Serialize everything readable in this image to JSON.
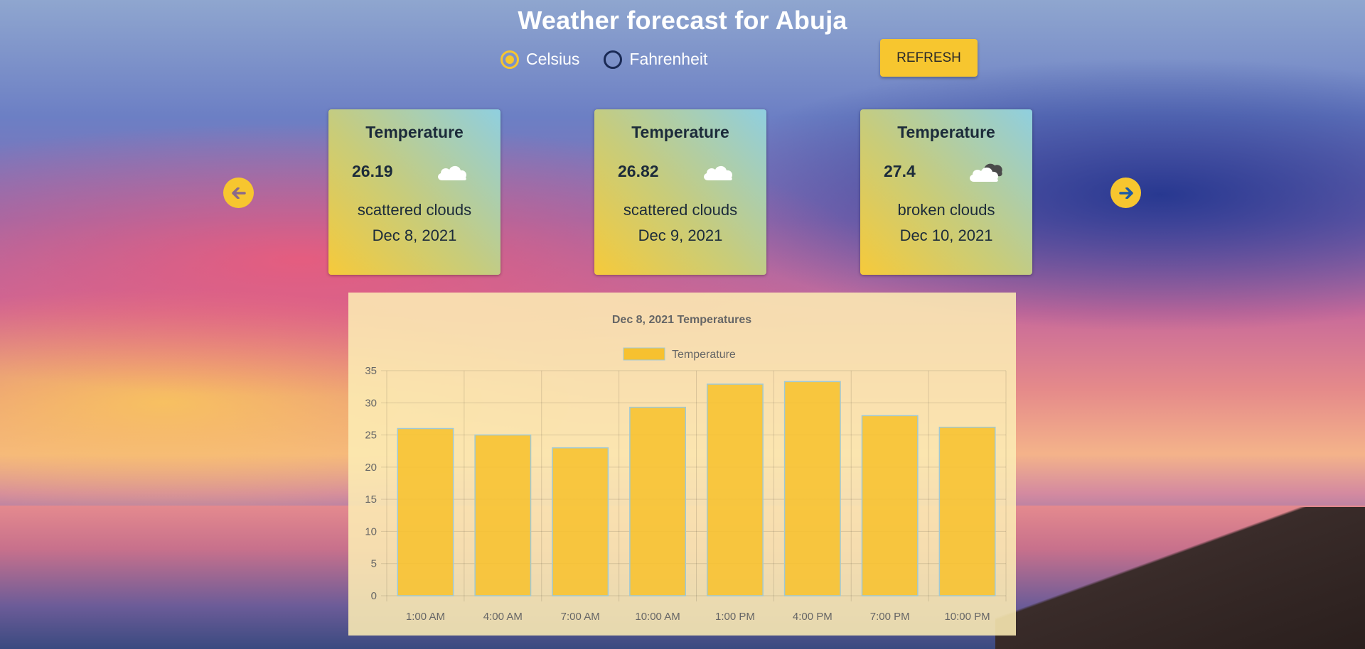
{
  "page": {
    "title": "Weather forecast for Abuja"
  },
  "units": {
    "options": [
      {
        "label": "Celsius",
        "selected": true
      },
      {
        "label": "Fahrenheit",
        "selected": false
      }
    ]
  },
  "toolbar": {
    "refresh_label": "REFRESH"
  },
  "navigation": {
    "prev_icon": "arrow-left-icon",
    "next_icon": "arrow-right-icon"
  },
  "cards": [
    {
      "heading": "Temperature",
      "temp": "26.19",
      "icon": "cloud-icon",
      "description": "scattered clouds",
      "date": "Dec 8, 2021"
    },
    {
      "heading": "Temperature",
      "temp": "26.82",
      "icon": "cloud-icon",
      "description": "scattered clouds",
      "date": "Dec 9, 2021"
    },
    {
      "heading": "Temperature",
      "temp": "27.4",
      "icon": "broken-clouds-icon",
      "description": "broken clouds",
      "date": "Dec 10, 2021"
    }
  ],
  "colors": {
    "accent": "#f7c62f",
    "bar_fill": "#f7c12f",
    "bar_border": "#9fc9d6"
  },
  "chart_data": {
    "type": "bar",
    "title": "Dec 8, 2021 Temperatures",
    "categories": [
      "1:00 AM",
      "4:00 AM",
      "7:00 AM",
      "10:00 AM",
      "1:00 PM",
      "4:00 PM",
      "7:00 PM",
      "10:00 PM"
    ],
    "series": [
      {
        "name": "Temperature",
        "values": [
          26,
          25,
          23,
          29.3,
          32.9,
          33.3,
          28,
          26.2
        ]
      }
    ],
    "ylim": [
      0,
      35
    ],
    "yticks": [
      0,
      5,
      10,
      15,
      20,
      25,
      30,
      35
    ],
    "grid": true,
    "legend": "top-center"
  }
}
